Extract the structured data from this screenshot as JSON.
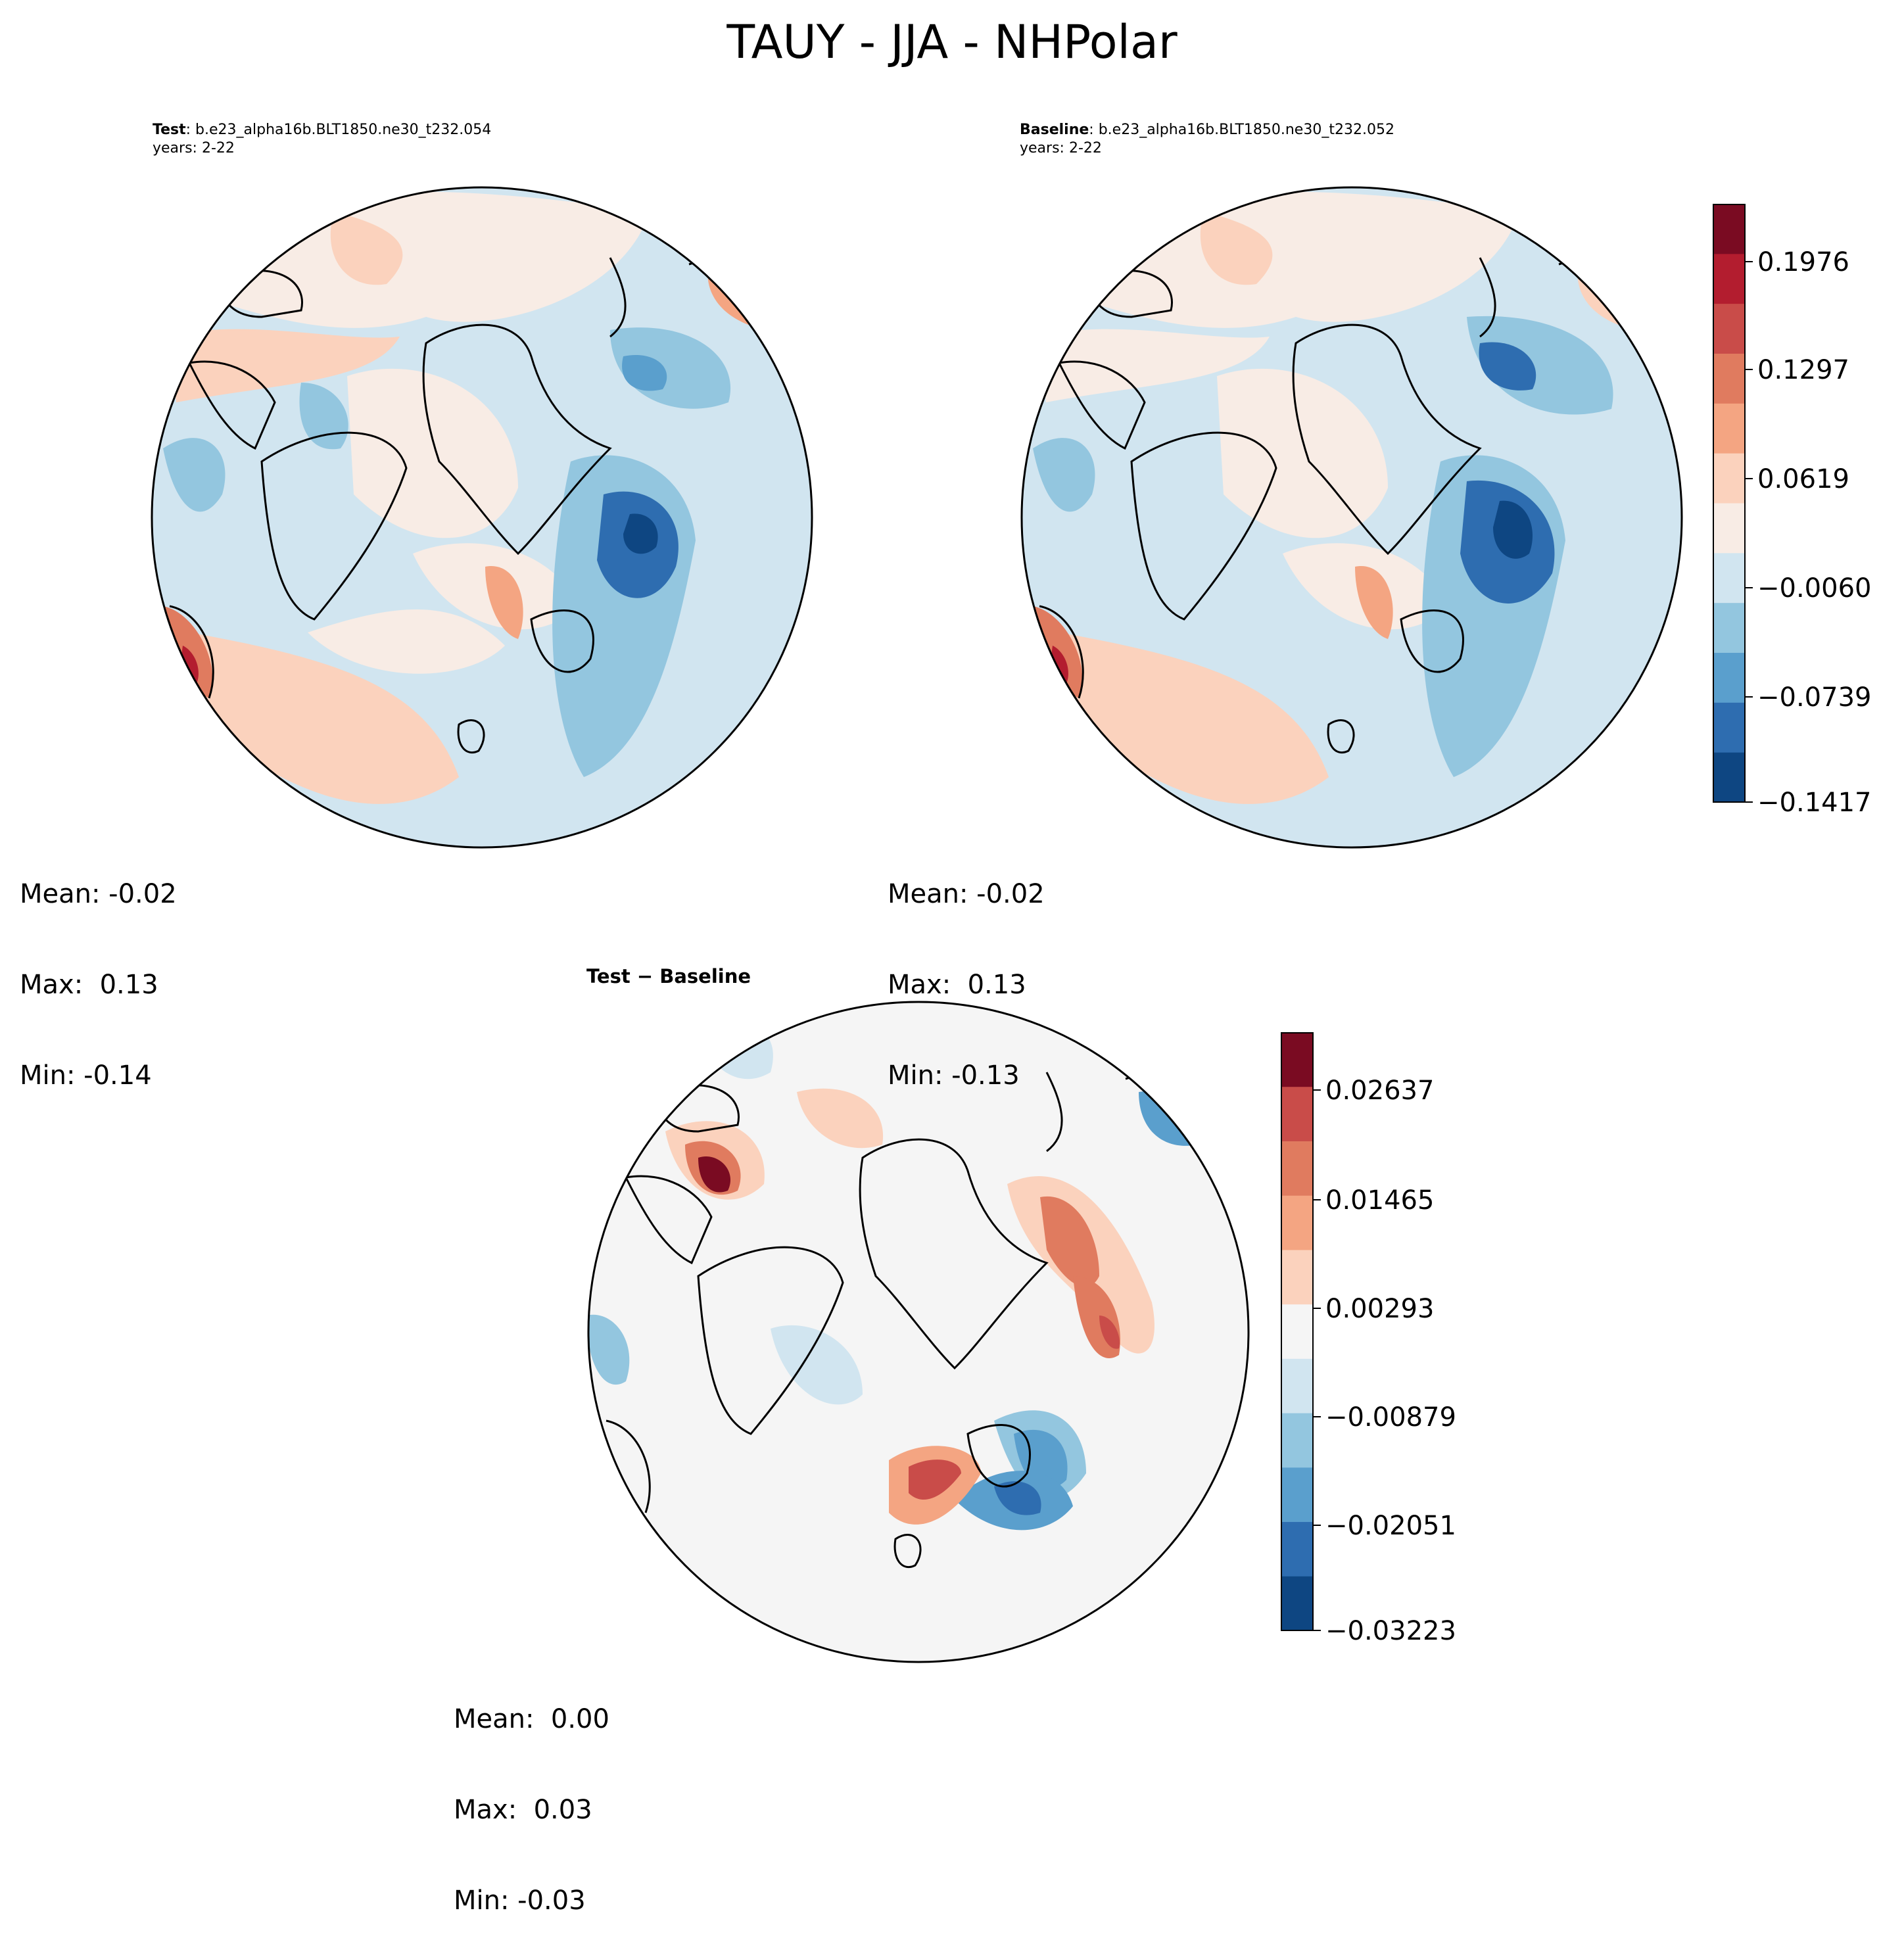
{
  "suptitle": "TAUY - JJA - NHPolar",
  "panels": {
    "test": {
      "label": "Test",
      "case": ": b.e23_alpha16b.BLT1850.ne30_t232.054",
      "years": "years: 2-22",
      "stats": {
        "mean": "Mean: -0.02",
        "max": "Max:  0.13",
        "min": "Min: -0.14"
      }
    },
    "baseline": {
      "label": "Baseline",
      "case": ": b.e23_alpha16b.BLT1850.ne30_t232.052",
      "years": "years: 2-22",
      "stats": {
        "mean": "Mean: -0.02",
        "max": "Max:  0.13",
        "min": "Min: -0.13"
      }
    },
    "diff": {
      "title": "Test − Baseline",
      "stats": {
        "mean": "Mean:  0.00",
        "max": "Max:  0.03",
        "min": "Min: -0.03"
      }
    }
  },
  "colorbars": {
    "main": {
      "colors": [
        "#0e4682",
        "#2e6db0",
        "#5a9fcd",
        "#93c6df",
        "#d1e5f0",
        "#f8ece5",
        "#fbd2bd",
        "#f4a582",
        "#e07b5f",
        "#c94c49",
        "#b31d2f",
        "#7a0b22"
      ],
      "ticks": [
        "0.1976",
        "0.1297",
        "0.0619",
        "−0.0060",
        "−0.0739",
        "−0.1417"
      ],
      "tick_values": [
        0.1976,
        0.1297,
        0.0619,
        -0.006,
        -0.0739,
        -0.1417
      ]
    },
    "diff": {
      "colors": [
        "#0e4682",
        "#2e6db0",
        "#5a9fcd",
        "#93c6df",
        "#d1e5f0",
        "#f5f5f5",
        "#fbd2bd",
        "#f4a582",
        "#e07b5f",
        "#c94c49",
        "#7a0b22"
      ],
      "ticks": [
        "0.02637",
        "0.01465",
        "0.00293",
        "−0.00879",
        "−0.02051",
        "−0.03223"
      ],
      "tick_values": [
        0.02637,
        0.01465,
        0.00293,
        -0.00879,
        -0.02051,
        -0.03223
      ]
    }
  }
}
